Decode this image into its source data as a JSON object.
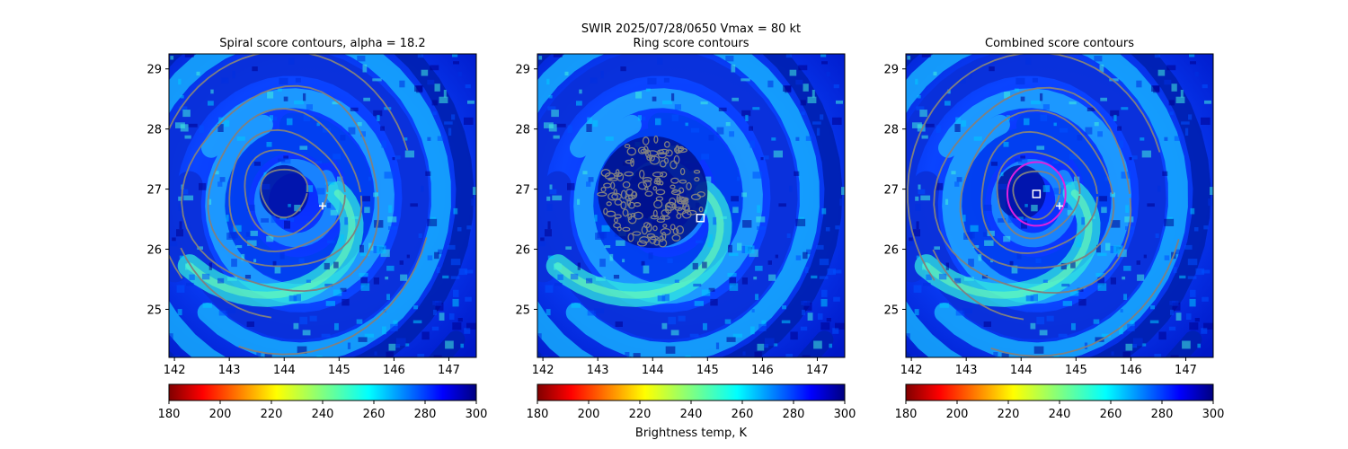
{
  "suptitle": "SWIR  2025/07/28/0650    Vmax = 80 kt",
  "colorbar_label": "Brightness temp, K",
  "colormap": "jet_r",
  "contour_color": "#808080",
  "marker_color": "#ffffff",
  "best_ring_color": "#e020e0",
  "chart_data": [
    {
      "type": "heatmap",
      "title": "Spiral score contours, alpha = 18.2",
      "xlim": [
        141.9,
        147.5
      ],
      "ylim": [
        24.2,
        29.25
      ],
      "xticks": [
        "142",
        "143",
        "144",
        "145",
        "146",
        "147"
      ],
      "yticks": [
        "25",
        "26",
        "27",
        "28",
        "29"
      ],
      "cbar": {
        "range": [
          180,
          300
        ],
        "ticks": [
          "180",
          "200",
          "220",
          "240",
          "260",
          "280",
          "300"
        ]
      },
      "markers": [
        {
          "kind": "plus",
          "x": 144.7,
          "y": 26.72
        }
      ]
    },
    {
      "type": "heatmap",
      "title": "Ring score contours",
      "xlim": [
        141.9,
        147.5
      ],
      "ylim": [
        24.2,
        29.25
      ],
      "xticks": [
        "142",
        "143",
        "144",
        "145",
        "146",
        "147"
      ],
      "yticks": [
        "25",
        "26",
        "27",
        "28",
        "29"
      ],
      "cbar": {
        "range": [
          180,
          300
        ],
        "ticks": [
          "180",
          "200",
          "220",
          "240",
          "260",
          "280",
          "300"
        ]
      },
      "ring_region": {
        "center": [
          144.0,
          26.95
        ],
        "radius": 1.0
      },
      "markers": [
        {
          "kind": "square",
          "x": 144.87,
          "y": 26.52
        }
      ]
    },
    {
      "type": "heatmap",
      "title": "Combined score contours",
      "xlim": [
        141.9,
        147.5
      ],
      "ylim": [
        24.2,
        29.25
      ],
      "xticks": [
        "142",
        "143",
        "144",
        "145",
        "146",
        "147"
      ],
      "yticks": [
        "25",
        "26",
        "27",
        "28",
        "29"
      ],
      "cbar": {
        "range": [
          180,
          300
        ],
        "ticks": [
          "180",
          "200",
          "220",
          "240",
          "260",
          "280",
          "300"
        ]
      },
      "best_ring": {
        "center": [
          144.28,
          26.92
        ],
        "radius": 0.53
      },
      "markers": [
        {
          "kind": "square",
          "x": 144.28,
          "y": 26.92
        },
        {
          "kind": "plus",
          "x": 144.7,
          "y": 26.72
        }
      ]
    }
  ]
}
